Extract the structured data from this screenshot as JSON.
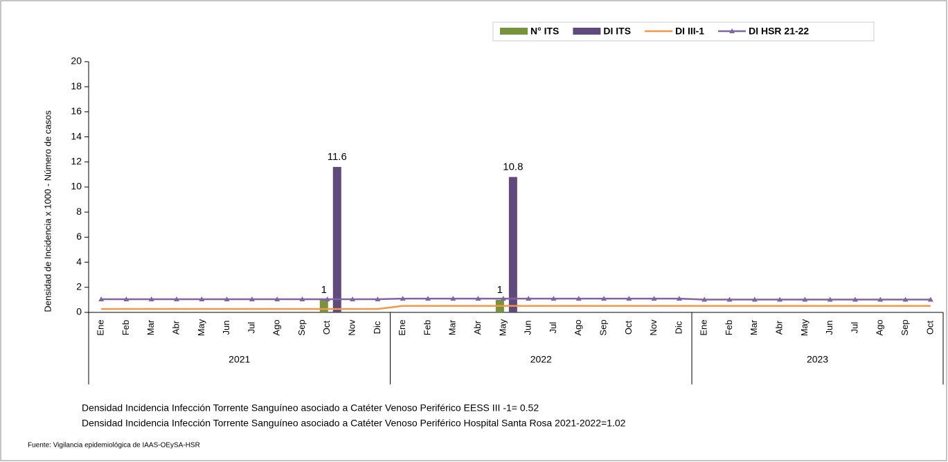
{
  "chart_data": {
    "type": "combo",
    "y_label": "Densidad de Incidencia x 1000 - Número de casos",
    "categories": [
      "Ene",
      "Feb",
      "Mar",
      "Abr",
      "May",
      "Jun",
      "Jul",
      "Ago",
      "Sep",
      "Oct",
      "Nov",
      "Dic",
      "Ene",
      "Feb",
      "Mar",
      "Abr",
      "May",
      "Jun",
      "Jul",
      "Ago",
      "Sep",
      "Oct",
      "Nov",
      "Dic",
      "Ene",
      "Feb",
      "Mar",
      "Abr",
      "May",
      "Jun",
      "Jul",
      "Ago",
      "Sep",
      "Oct"
    ],
    "groups": [
      "2021",
      "2022",
      "2023"
    ],
    "series": [
      {
        "name": "N° ITS",
        "type": "bar",
        "color": "#77933c",
        "values": [
          null,
          null,
          null,
          null,
          null,
          null,
          null,
          null,
          null,
          1,
          null,
          null,
          null,
          null,
          null,
          null,
          1,
          null,
          null,
          null,
          null,
          null,
          null,
          null,
          null,
          null,
          null,
          null,
          null,
          null,
          null,
          null,
          null,
          null
        ]
      },
      {
        "name": "DI ITS",
        "type": "bar",
        "color": "#604a7b",
        "values": [
          null,
          null,
          null,
          null,
          null,
          null,
          null,
          null,
          null,
          11.6,
          null,
          null,
          null,
          null,
          null,
          null,
          10.8,
          null,
          null,
          null,
          null,
          null,
          null,
          null,
          null,
          null,
          null,
          null,
          null,
          null,
          null,
          null,
          null,
          null
        ]
      },
      {
        "name": "DI III-1",
        "type": "line",
        "color": "#f79646",
        "values": [
          0.27,
          0.27,
          0.27,
          0.27,
          0.27,
          0.27,
          0.27,
          0.27,
          0.27,
          0.27,
          0.27,
          0.27,
          0.52,
          0.52,
          0.52,
          0.52,
          0.52,
          0.52,
          0.52,
          0.52,
          0.52,
          0.52,
          0.52,
          0.52,
          0.52,
          0.52,
          0.52,
          0.52,
          0.52,
          0.52,
          0.52,
          0.52,
          0.52,
          0.52
        ]
      },
      {
        "name": "DI HSR 21-22",
        "type": "line",
        "marker": "triangle",
        "color": "#8064a2",
        "values": [
          1.05,
          1.05,
          1.05,
          1.05,
          1.05,
          1.05,
          1.05,
          1.05,
          1.05,
          1.05,
          1.05,
          1.05,
          1.1,
          1.1,
          1.1,
          1.1,
          1.1,
          1.1,
          1.1,
          1.1,
          1.1,
          1.1,
          1.1,
          1.1,
          1.02,
          1.02,
          1.02,
          1.02,
          1.02,
          1.02,
          1.02,
          1.02,
          1.02,
          1.02
        ]
      }
    ],
    "ylim": [
      0,
      20
    ],
    "yticks": [
      0,
      2,
      4,
      6,
      8,
      10,
      12,
      14,
      16,
      18,
      20
    ],
    "legend": "top-right",
    "notes": [
      "Densidad Incidencia Infección Torrente Sanguíneo asociado a Catéter Venoso Periférico  EESS III -1= 0.52",
      "Densidad Incidencia Infección Torrente Sanguíneo asociado a Catéter Venoso Periférico Hospital Santa Rosa 2021-2022=1.02"
    ],
    "source": "Fuente: Vigilancia epidemiológica de IAAS-OEySA-HSR"
  }
}
